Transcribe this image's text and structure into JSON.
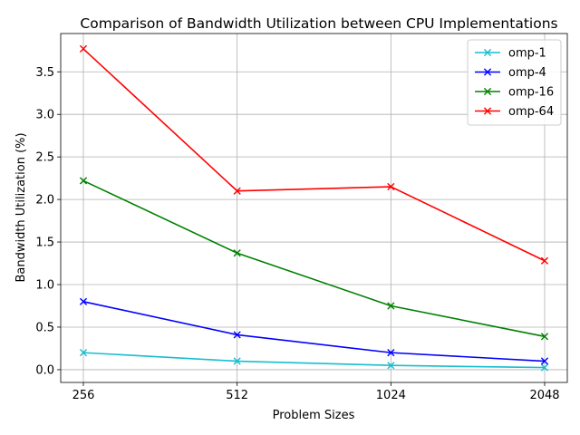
{
  "chart_data": {
    "type": "line",
    "title": "Comparison of Bandwidth Utilization between CPU Implementations",
    "xlabel": "Problem Sizes",
    "ylabel": "Bandwidth Utilization (%)",
    "categories": [
      "256",
      "512",
      "1024",
      "2048"
    ],
    "ylim": [
      -0.15,
      3.95
    ],
    "yticks": [
      "0.0",
      "0.5",
      "1.0",
      "1.5",
      "2.0",
      "2.5",
      "3.0",
      "3.5"
    ],
    "grid": true,
    "legend_position": "top-right",
    "marker": "x",
    "series": [
      {
        "name": "omp-1",
        "color": "#17becf",
        "values": [
          0.2,
          0.1,
          0.05,
          0.025
        ]
      },
      {
        "name": "omp-4",
        "color": "#0000ff",
        "values": [
          0.8,
          0.41,
          0.2,
          0.1
        ]
      },
      {
        "name": "omp-16",
        "color": "#008000",
        "values": [
          2.22,
          1.37,
          0.75,
          0.39
        ]
      },
      {
        "name": "omp-64",
        "color": "#ff0000",
        "values": [
          3.77,
          2.1,
          2.15,
          1.28
        ]
      }
    ]
  }
}
